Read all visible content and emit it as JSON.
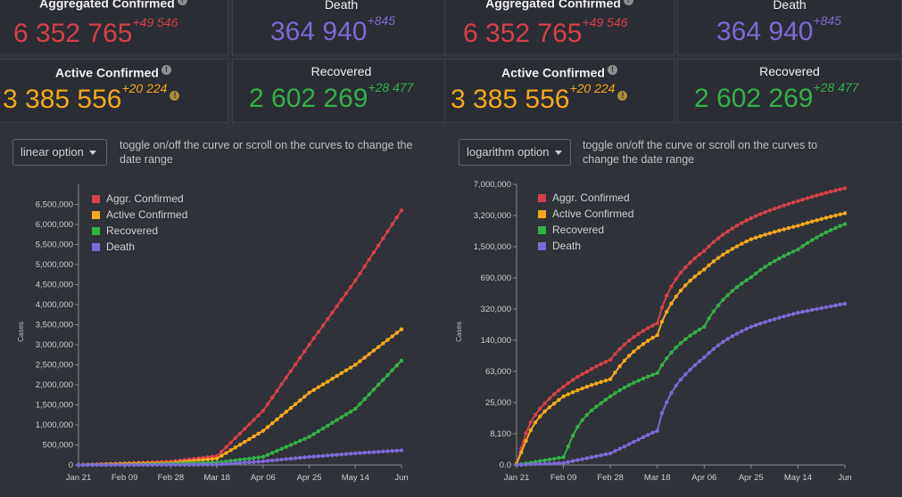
{
  "stats": {
    "aggregated_confirmed": {
      "label": "Aggregated Confirmed",
      "value": "6 352 765",
      "delta": "+49 546"
    },
    "death": {
      "label": "Death",
      "value": "364 940",
      "delta": "+845"
    },
    "active_confirmed": {
      "label": "Active Confirmed",
      "value": "3 385 556",
      "delta": "+20 224"
    },
    "recovered": {
      "label": "Recovered",
      "value": "2 602 269",
      "delta": "+28 477"
    }
  },
  "left": {
    "dropdown_label": "linear option",
    "hint": "toggle on/off the curve or scroll on the curves to change the date range"
  },
  "right": {
    "dropdown_label": "logarithm option",
    "hint": "toggle on/off the curve or scroll on the curves to change the date range"
  },
  "colors": {
    "aggr": "#d6404a",
    "active": "#f4a91c",
    "recovered": "#34b04a",
    "death": "#7d69d6"
  },
  "chart_data": [
    {
      "type": "line",
      "scale": "linear",
      "ylabel": "Cases",
      "x": [
        "Jan 21",
        "Feb 09",
        "Feb 28",
        "Mar 18",
        "Apr 06",
        "Apr 25",
        "May 14",
        "Jun"
      ],
      "ylim": [
        0,
        7000000
      ],
      "yticks": [
        "0",
        "500,000",
        "1,000,000",
        "1,500,000",
        "2,000,000",
        "2,500,000",
        "3,000,000",
        "3,500,000",
        "4,000,000",
        "4,500,000",
        "5,000,000",
        "5,500,000",
        "6,000,000",
        "6,500,000"
      ],
      "series": [
        {
          "name": "Aggr. Confirmed",
          "values": [
            0,
            40000,
            85000,
            220000,
            1350000,
            3000000,
            4600000,
            6352765
          ]
        },
        {
          "name": "Active Confirmed",
          "values": [
            0,
            30000,
            50000,
            160000,
            850000,
            1800000,
            2500000,
            3385556
          ]
        },
        {
          "name": "Recovered",
          "values": [
            0,
            2000,
            30000,
            60000,
            200000,
            700000,
            1400000,
            2602269
          ]
        },
        {
          "name": "Death",
          "values": [
            0,
            500,
            3000,
            9000,
            90000,
            200000,
            290000,
            364940
          ]
        }
      ],
      "legend": "top-left"
    },
    {
      "type": "line",
      "scale": "log",
      "ylabel": "Cases",
      "x": [
        "Jan 21",
        "Feb 09",
        "Feb 28",
        "Mar 18",
        "Apr 06",
        "Apr 25",
        "May 14",
        "Jun"
      ],
      "yticks": [
        "0.0",
        "8,100",
        "25,000",
        "63,000",
        "140,000",
        "320,000",
        "690,000",
        "1,500,000",
        "3,200,000",
        "7,000,000"
      ],
      "series": [
        {
          "name": "Aggr. Confirmed",
          "values": [
            300,
            40000,
            85000,
            220000,
            1350000,
            3000000,
            4600000,
            6352765
          ]
        },
        {
          "name": "Active Confirmed",
          "values": [
            300,
            30000,
            50000,
            160000,
            850000,
            1800000,
            2500000,
            3385556
          ]
        },
        {
          "name": "Recovered",
          "values": [
            1,
            2000,
            30000,
            60000,
            200000,
            700000,
            1400000,
            2602269
          ]
        },
        {
          "name": "Death",
          "values": [
            1,
            500,
            3000,
            9000,
            90000,
            200000,
            290000,
            364940
          ]
        }
      ],
      "legend": "top-left"
    }
  ]
}
